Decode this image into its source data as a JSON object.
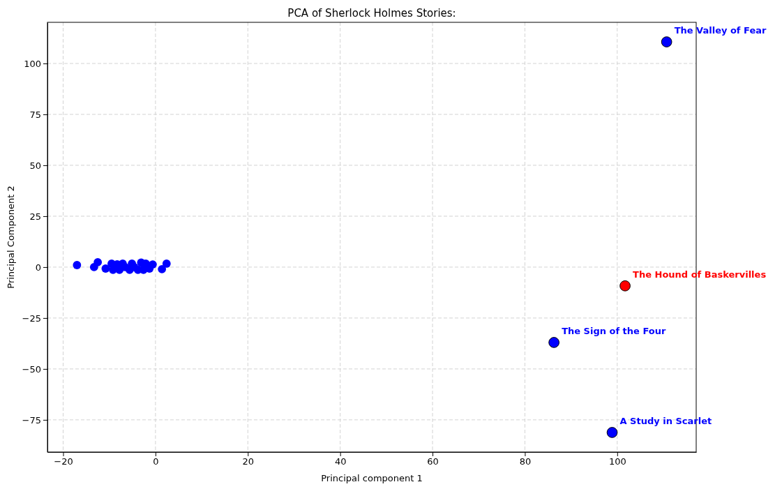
{
  "chart_data": {
    "type": "scatter",
    "title": "PCA of Sherlock Holmes Stories:",
    "xlabel": "Principal component 1",
    "ylabel": "Principal Component 2",
    "xlim": [
      -23.4,
      117.1
    ],
    "ylim": [
      -90.8,
      120.2
    ],
    "xticks": [
      {
        "value": -20,
        "label": "−20"
      },
      0,
      20,
      40,
      60,
      80,
      100
    ],
    "yticks": [
      {
        "value": -75,
        "label": "−75"
      },
      {
        "value": -50,
        "label": "−50"
      },
      {
        "value": -25,
        "label": "−25"
      },
      0,
      25,
      50,
      75,
      100
    ],
    "grid": true,
    "marker": "circle",
    "series": [
      {
        "color": "#0000ff",
        "x": [
          -17.0,
          -13.3,
          -12.5,
          -10.8,
          -9.5,
          -9.2,
          -8.3,
          -7.8,
          -7.1,
          -6.6,
          -5.6,
          -5.1,
          -4.6,
          -3.8,
          -3.1,
          -2.6,
          -2.1,
          -1.3,
          -0.6,
          1.4,
          2.4
        ],
        "values": [
          1.0,
          0,
          2.4,
          -0.7,
          1.7,
          -1.3,
          1.4,
          -1.3,
          1.7,
          0,
          -1.3,
          1.7,
          0,
          -1.3,
          2.2,
          -1.3,
          1.7,
          -0.7,
          1.3,
          -1.0,
          1.7
        ]
      },
      {
        "name": "The Valley of Fear",
        "color": "#0000ff",
        "x": [
          110.7
        ],
        "values": [
          110.6
        ]
      },
      {
        "name": "The Hound of Baskervilles",
        "color": "#ff0000",
        "x": [
          101.7
        ],
        "values": [
          -9.2
        ]
      },
      {
        "name": "The Sign of the Four",
        "color": "#0000ff",
        "x": [
          86.3
        ],
        "values": [
          -37.0
        ]
      },
      {
        "name": "A Study in Scarlet",
        "color": "#0000ff",
        "x": [
          98.9
        ],
        "values": [
          -81.2
        ]
      }
    ]
  }
}
